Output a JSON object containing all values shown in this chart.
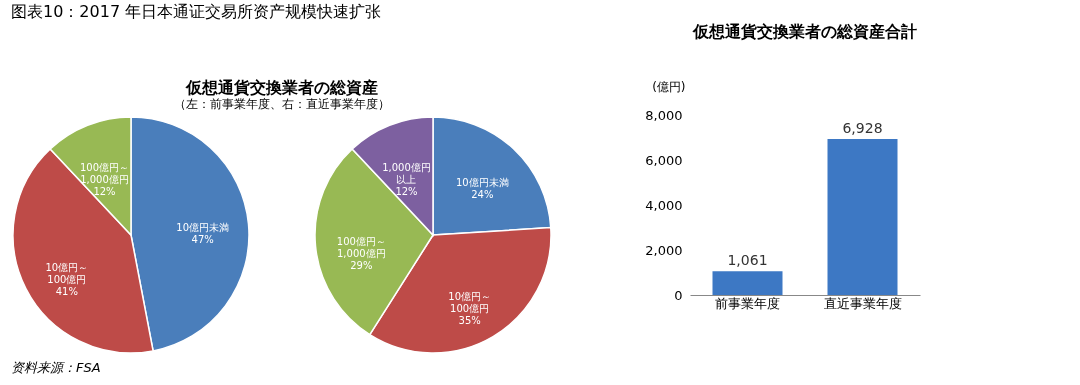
{
  "chart_data": [
    {
      "type": "pie",
      "title": "仮想通貨交換業者の総資産",
      "subtitle": "（左：前事業年度、右：直近事業年度）",
      "annotations": [
        "图表10：2017 年日本通证交易所资产规模快速扩张",
        "资料来源：FSA"
      ],
      "categories": [
        "10億円未満",
        "10億円～100億円",
        "100億円～1,000億円"
      ],
      "values": [
        47,
        41,
        12
      ],
      "value_labels": [
        "47%",
        "41%",
        "12%"
      ],
      "colors": [
        "#4a7ebb",
        "#be4b48",
        "#98b954"
      ],
      "legend": false
    },
    {
      "type": "pie",
      "categories": [
        "10億円未満",
        "10億円～100億円",
        "100億円～1,000億円",
        "1,000億円以上"
      ],
      "values": [
        24,
        35,
        29,
        12
      ],
      "value_labels": [
        "24%",
        "35%",
        "29%",
        "12%"
      ],
      "colors": [
        "#4a7ebb",
        "#be4b48",
        "#98b954",
        "#7d60a0"
      ],
      "legend": false
    },
    {
      "type": "bar",
      "title": "仮想通貨交換業者の総資産合計",
      "ylabel": "(億円)",
      "categories": [
        "前事業年度",
        "直近事業年度"
      ],
      "values": [
        1061,
        6928
      ],
      "value_labels": [
        "1,061",
        "6,928"
      ],
      "color": "#3d78c4",
      "ylim": [
        0,
        8000
      ],
      "yticks": [
        0,
        {
          "value": 2000,
          "label": "2,000"
        },
        {
          "value": 4000,
          "label": "4,000"
        },
        {
          "value": 6000,
          "label": "6,000"
        },
        {
          "value": 8000,
          "label": "8,000"
        }
      ],
      "grid": false
    }
  ]
}
